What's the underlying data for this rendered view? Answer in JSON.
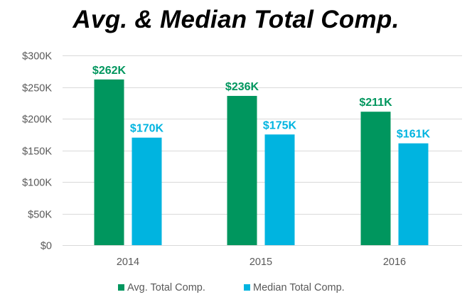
{
  "chart_data": {
    "type": "bar",
    "title": "Avg. & Median Total Comp.",
    "categories": [
      "2014",
      "2015",
      "2016"
    ],
    "series": [
      {
        "name": "Avg. Total Comp.",
        "values": [
          262,
          236,
          211
        ],
        "labels": [
          "$262K",
          "$236K",
          "$211K"
        ],
        "color": "#00965e"
      },
      {
        "name": "Median Total Comp.",
        "values": [
          170,
          175,
          161
        ],
        "labels": [
          "$170K",
          "$175K",
          "$161K"
        ],
        "color": "#00b4e0"
      }
    ],
    "y_ticks": [
      0,
      50,
      100,
      150,
      200,
      250,
      300
    ],
    "y_tick_labels": [
      "$0",
      "$50K",
      "$100K",
      "$150K",
      "$200K",
      "$250K",
      "$300K"
    ],
    "ylim": [
      0,
      300
    ],
    "y_units": "thousands of dollars",
    "xlabel": "",
    "ylabel": "",
    "grid": true,
    "legend_position": "bottom"
  },
  "colors": {
    "grid": "#d9d9d9",
    "tick_text": "#595959"
  }
}
